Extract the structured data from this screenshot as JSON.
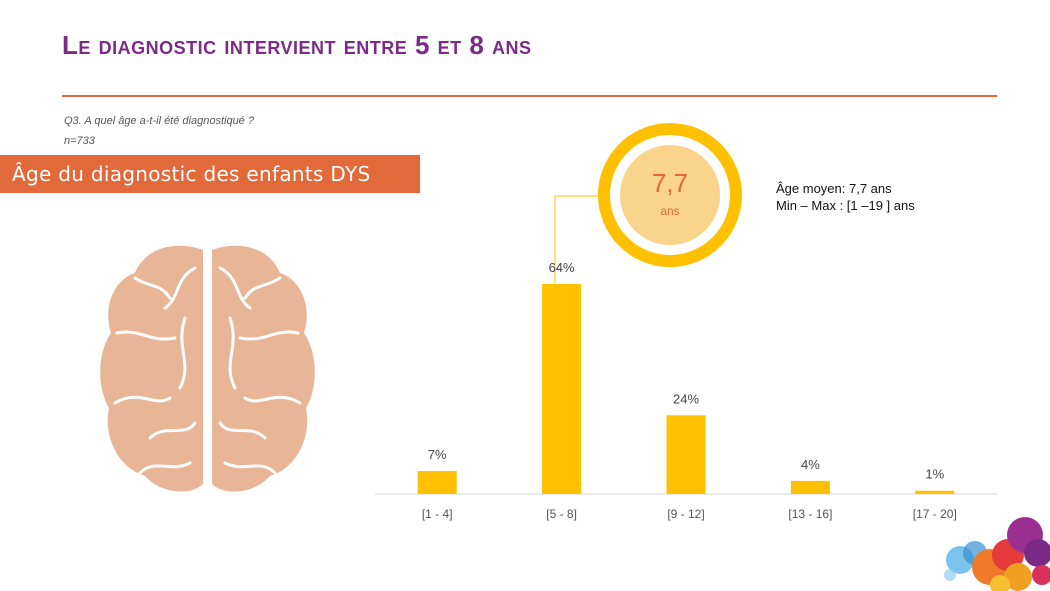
{
  "title": "Le diagnostic intervient entre 5 et 8 ans",
  "question": "Q3. A quel âge a-t-il été diagnostiqué  ?",
  "sample": "n=733",
  "banner": "Âge du diagnostic des enfants DYS",
  "badge": {
    "value": "7,7",
    "unit": "ans"
  },
  "average": {
    "line1": "Âge moyen: 7,7 ans",
    "line2": "Min – Max : [1 –19 ] ans"
  },
  "colors": {
    "accent": "#e1693a",
    "title": "#7b2a87",
    "bar": "#ffc000",
    "badge_fill": "#fad48a",
    "brain": "#e8b596"
  },
  "chart_data": {
    "type": "bar",
    "categories": [
      "[1 - 4]",
      "[5 - 8]",
      "[9 - 12]",
      "[13 - 16]",
      "[17 - 20]"
    ],
    "values": [
      7,
      64,
      24,
      4,
      1
    ],
    "value_labels": [
      "7%",
      "64%",
      "24%",
      "4%",
      "1%"
    ],
    "title": "",
    "xlabel": "",
    "ylabel": "",
    "ylim": [
      0,
      64
    ],
    "grid": false
  }
}
